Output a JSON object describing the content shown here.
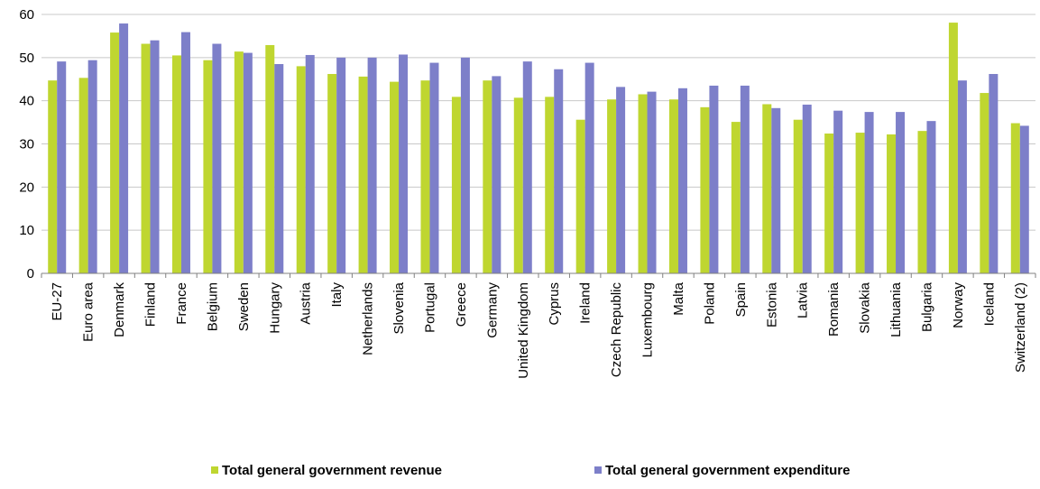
{
  "chart_data": {
    "type": "bar",
    "title": "",
    "xlabel": "",
    "ylabel": "",
    "ylim": [
      0,
      60
    ],
    "yticks": [
      0,
      10,
      20,
      30,
      40,
      50,
      60
    ],
    "grid": "horizontal",
    "legend_position": "bottom",
    "categories": [
      "EU-27",
      "Euro area",
      "Denmark",
      "Finland",
      "France",
      "Belgium",
      "Sweden",
      "Hungary",
      "Austria",
      "Italy",
      "Netherlands",
      "Slovenia",
      "Portugal",
      "Greece",
      "Germany",
      "United Kingdom",
      "Cyprus",
      "Ireland",
      "Czech Republic",
      "Luxembourg",
      "Malta",
      "Poland",
      "Spain",
      "Estonia",
      "Latvia",
      "Romania",
      "Slovakia",
      "Lithuania",
      "Bulgaria",
      "Norway",
      "Iceland",
      "Switzerland (2)"
    ],
    "series": [
      {
        "name": "Total general government revenue",
        "color": "#bfd630",
        "values": [
          44.7,
          45.3,
          55.8,
          53.2,
          50.5,
          49.4,
          51.4,
          52.9,
          48.0,
          46.2,
          45.6,
          44.4,
          44.7,
          40.9,
          44.7,
          40.7,
          40.9,
          35.6,
          40.3,
          41.5,
          40.3,
          38.5,
          35.1,
          39.2,
          35.6,
          32.4,
          32.6,
          32.2,
          33.0,
          58.1,
          41.8,
          34.8
        ]
      },
      {
        "name": "Total general government expenditure",
        "color": "#7d7fc9",
        "values": [
          49.1,
          49.4,
          57.9,
          54.0,
          55.9,
          53.2,
          51.1,
          48.5,
          50.6,
          50.0,
          50.0,
          50.7,
          48.8,
          50.0,
          45.7,
          49.1,
          47.3,
          48.8,
          43.2,
          42.1,
          42.9,
          43.5,
          43.5,
          38.3,
          39.1,
          37.7,
          37.4,
          37.4,
          35.3,
          44.7,
          46.2,
          34.2
        ]
      }
    ]
  }
}
